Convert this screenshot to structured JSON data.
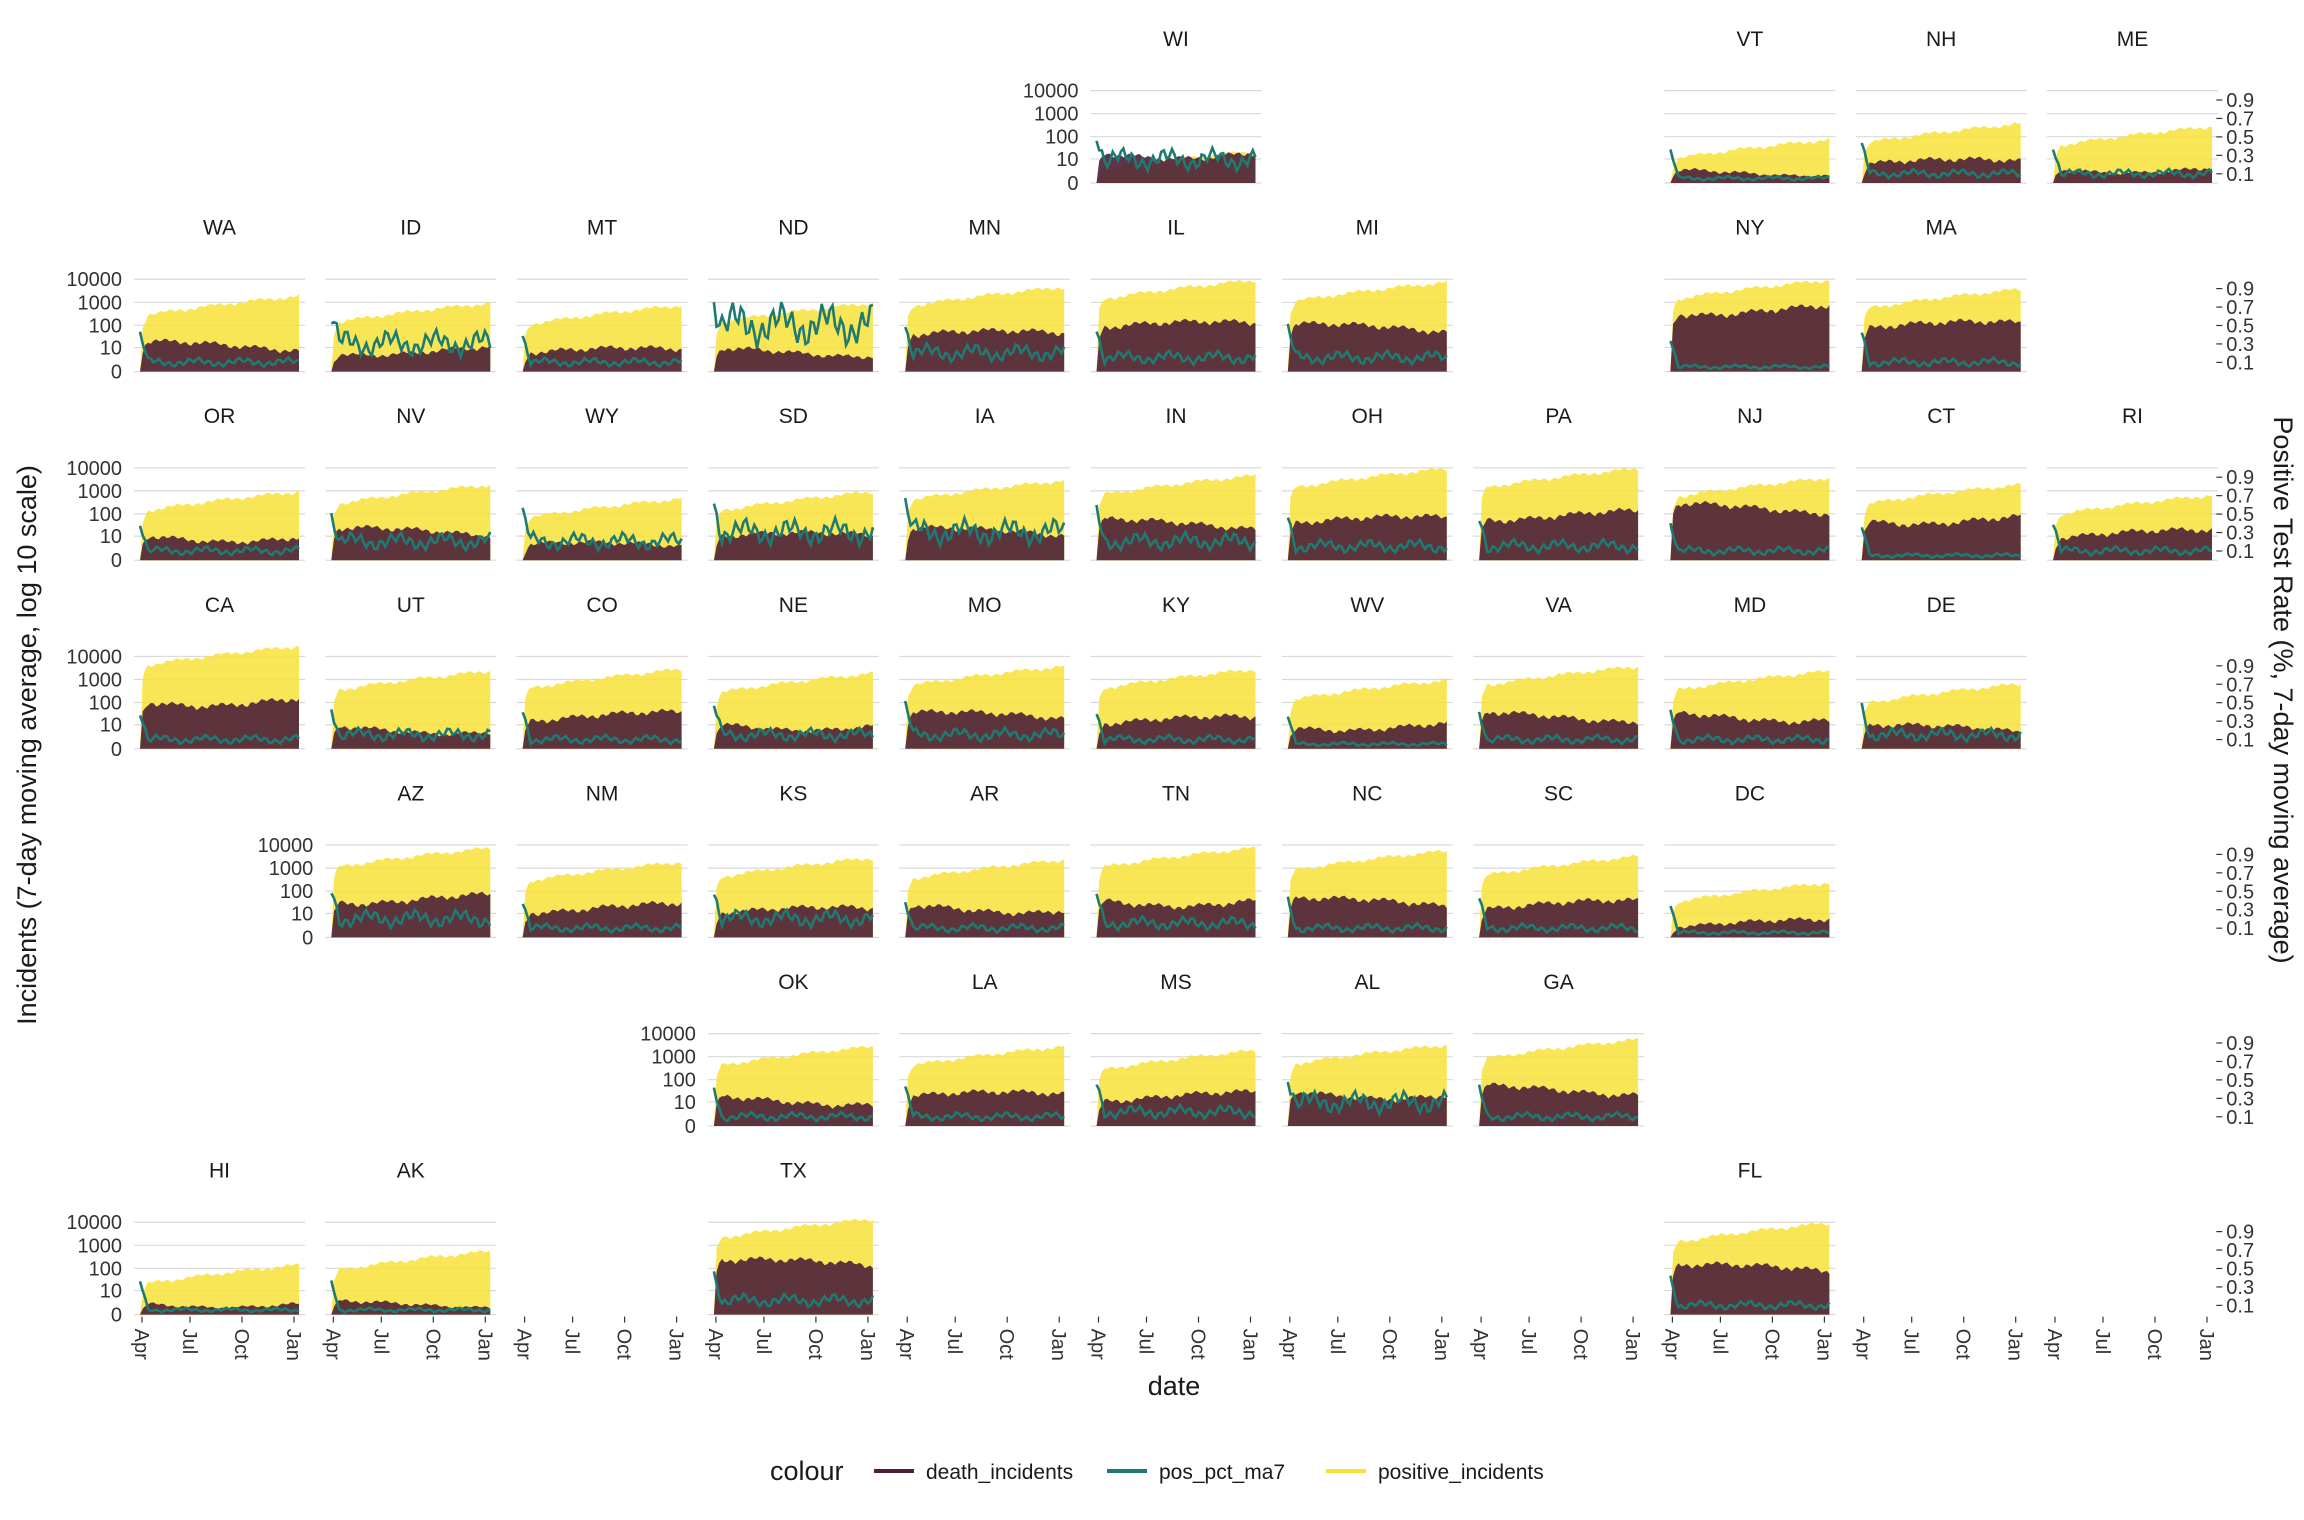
{
  "chart_data": {
    "type": "area",
    "facet_layout": "geofacet",
    "y_label": "Incidents (7-day moving average, log 10 scale)",
    "y2_label": "Positive Test Rate (%, 7-day moving average)",
    "x_label": "date",
    "y_ticks": [
      "0",
      "10",
      "100",
      "1000",
      "10000"
    ],
    "y2_ticks": [
      "0.1",
      "0.3",
      "0.5",
      "0.7",
      "0.9"
    ],
    "x_ticks": [
      "Apr",
      "Jul",
      "Oct",
      "Jan"
    ],
    "x_range": [
      "2020-03-15",
      "2021-01-10"
    ],
    "y_scale": "log10",
    "grid": true,
    "legend": {
      "title": "colour",
      "position": "bottom",
      "items": [
        {
          "label": "death_incidents",
          "color": "#4b1f3a"
        },
        {
          "label": "pos_pct_ma7",
          "color": "#1f7a72"
        },
        {
          "label": "positive_incidents",
          "color": "#f7e23a"
        }
      ]
    },
    "facets": [
      {
        "label": "WI",
        "row": 0,
        "col": 5,
        "pos": 25,
        "death": 30,
        "rate": 0.25
      },
      {
        "label": "VT",
        "row": 0,
        "col": 8,
        "pos": 80,
        "death": 3,
        "rate": 0.05
      },
      {
        "label": "NH",
        "row": 0,
        "col": 9,
        "pos": 400,
        "death": 10,
        "rate": 0.1
      },
      {
        "label": "ME",
        "row": 0,
        "col": 10,
        "pos": 300,
        "death": 5,
        "rate": 0.1
      },
      {
        "label": "WA",
        "row": 1,
        "col": 0,
        "pos": 2000,
        "death": 20,
        "rate": 0.1
      },
      {
        "label": "ID",
        "row": 1,
        "col": 1,
        "pos": 1000,
        "death": 12,
        "rate": 0.3
      },
      {
        "label": "MT",
        "row": 1,
        "col": 2,
        "pos": 800,
        "death": 10,
        "rate": 0.1
      },
      {
        "label": "ND",
        "row": 1,
        "col": 3,
        "pos": 1000,
        "death": 10,
        "rate": 0.5
      },
      {
        "label": "MN",
        "row": 1,
        "col": 4,
        "pos": 5000,
        "death": 60,
        "rate": 0.2
      },
      {
        "label": "IL",
        "row": 1,
        "col": 5,
        "pos": 10000,
        "death": 150,
        "rate": 0.15
      },
      {
        "label": "MI",
        "row": 1,
        "col": 6,
        "pos": 8000,
        "death": 120,
        "rate": 0.15
      },
      {
        "label": "NY",
        "row": 1,
        "col": 8,
        "pos": 10000,
        "death": 800,
        "rate": 0.05
      },
      {
        "label": "MA",
        "row": 1,
        "col": 9,
        "pos": 4000,
        "death": 150,
        "rate": 0.1
      },
      {
        "label": "OR",
        "row": 2,
        "col": 0,
        "pos": 1000,
        "death": 15,
        "rate": 0.1
      },
      {
        "label": "NV",
        "row": 2,
        "col": 1,
        "pos": 2000,
        "death": 25,
        "rate": 0.2
      },
      {
        "label": "WY",
        "row": 2,
        "col": 2,
        "pos": 500,
        "death": 5,
        "rate": 0.2
      },
      {
        "label": "SD",
        "row": 2,
        "col": 3,
        "pos": 1000,
        "death": 15,
        "rate": 0.3
      },
      {
        "label": "IA",
        "row": 2,
        "col": 4,
        "pos": 3000,
        "death": 25,
        "rate": 0.3
      },
      {
        "label": "IN",
        "row": 2,
        "col": 5,
        "pos": 5000,
        "death": 60,
        "rate": 0.2
      },
      {
        "label": "OH",
        "row": 2,
        "col": 6,
        "pos": 10000,
        "death": 80,
        "rate": 0.15
      },
      {
        "label": "PA",
        "row": 2,
        "col": 7,
        "pos": 10000,
        "death": 150,
        "rate": 0.15
      },
      {
        "label": "NJ",
        "row": 2,
        "col": 8,
        "pos": 4000,
        "death": 300,
        "rate": 0.1
      },
      {
        "label": "CT",
        "row": 2,
        "col": 9,
        "pos": 2000,
        "death": 100,
        "rate": 0.05
      },
      {
        "label": "RI",
        "row": 2,
        "col": 10,
        "pos": 700,
        "death": 20,
        "rate": 0.1
      },
      {
        "label": "CA",
        "row": 3,
        "col": 0,
        "pos": 30000,
        "death": 200,
        "rate": 0.1
      },
      {
        "label": "UT",
        "row": 3,
        "col": 1,
        "pos": 2500,
        "death": 10,
        "rate": 0.15
      },
      {
        "label": "CO",
        "row": 3,
        "col": 2,
        "pos": 3000,
        "death": 40,
        "rate": 0.1
      },
      {
        "label": "NE",
        "row": 3,
        "col": 3,
        "pos": 2000,
        "death": 15,
        "rate": 0.15
      },
      {
        "label": "MO",
        "row": 3,
        "col": 4,
        "pos": 4000,
        "death": 40,
        "rate": 0.15
      },
      {
        "label": "KY",
        "row": 3,
        "col": 5,
        "pos": 3000,
        "death": 25,
        "rate": 0.1
      },
      {
        "label": "WV",
        "row": 3,
        "col": 6,
        "pos": 1000,
        "death": 15,
        "rate": 0.05
      },
      {
        "label": "VA",
        "row": 3,
        "col": 7,
        "pos": 4000,
        "death": 40,
        "rate": 0.1
      },
      {
        "label": "MD",
        "row": 3,
        "col": 8,
        "pos": 2500,
        "death": 40,
        "rate": 0.1
      },
      {
        "label": "DE",
        "row": 3,
        "col": 9,
        "pos": 700,
        "death": 10,
        "rate": 0.15
      },
      {
        "label": "AZ",
        "row": 4,
        "col": 1,
        "pos": 8000,
        "death": 80,
        "rate": 0.2
      },
      {
        "label": "NM",
        "row": 4,
        "col": 2,
        "pos": 2000,
        "death": 30,
        "rate": 0.1
      },
      {
        "label": "KS",
        "row": 4,
        "col": 3,
        "pos": 3000,
        "death": 20,
        "rate": 0.2
      },
      {
        "label": "AR",
        "row": 4,
        "col": 4,
        "pos": 2500,
        "death": 30,
        "rate": 0.1
      },
      {
        "label": "TN",
        "row": 4,
        "col": 5,
        "pos": 8000,
        "death": 60,
        "rate": 0.15
      },
      {
        "label": "NC",
        "row": 4,
        "col": 6,
        "pos": 6000,
        "death": 50,
        "rate": 0.1
      },
      {
        "label": "SC",
        "row": 4,
        "col": 7,
        "pos": 3500,
        "death": 40,
        "rate": 0.1
      },
      {
        "label": "DC",
        "row": 4,
        "col": 8,
        "pos": 250,
        "death": 5,
        "rate": 0.05
      },
      {
        "label": "OK",
        "row": 5,
        "col": 3,
        "pos": 3000,
        "death": 20,
        "rate": 0.1
      },
      {
        "label": "LA",
        "row": 5,
        "col": 4,
        "pos": 3000,
        "death": 30,
        "rate": 0.1
      },
      {
        "label": "MS",
        "row": 5,
        "col": 5,
        "pos": 2000,
        "death": 30,
        "rate": 0.15
      },
      {
        "label": "AL",
        "row": 5,
        "col": 6,
        "pos": 3500,
        "death": 40,
        "rate": 0.25
      },
      {
        "label": "GA",
        "row": 5,
        "col": 7,
        "pos": 6000,
        "death": 60,
        "rate": 0.1
      },
      {
        "label": "HI",
        "row": 6,
        "col": 0,
        "pos": 150,
        "death": 3,
        "rate": 0.05
      },
      {
        "label": "AK",
        "row": 6,
        "col": 1,
        "pos": 600,
        "death": 3,
        "rate": 0.05
      },
      {
        "label": "TX",
        "row": 6,
        "col": 3,
        "pos": 15000,
        "death": 250,
        "rate": 0.15
      },
      {
        "label": "FL",
        "row": 6,
        "col": 8,
        "pos": 10000,
        "death": 150,
        "rate": 0.1
      }
    ],
    "x_axis_columns": [
      0,
      1,
      2,
      3,
      4,
      5,
      6,
      7,
      8,
      9,
      10
    ]
  }
}
